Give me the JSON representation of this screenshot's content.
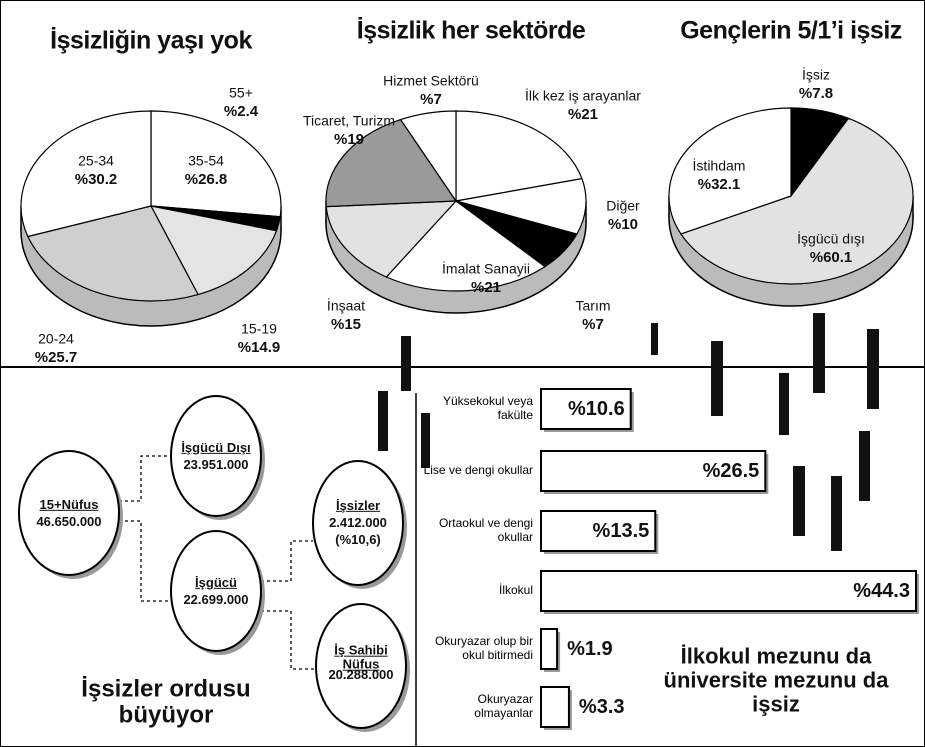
{
  "chart_data": [
    {
      "type": "pie",
      "title": "İşsizliğin yaşı yok",
      "categories": [
        "35-54",
        "55+",
        "15-19",
        "20-24",
        "25-34"
      ],
      "values": [
        26.8,
        2.4,
        14.9,
        25.7,
        30.2
      ],
      "value_labels": [
        "%26.8",
        "%2.4",
        "%14.9",
        "%25.7",
        "%30.2"
      ],
      "colors": [
        "#ffffff",
        "#000000",
        "#e4e4e4",
        "#cfcfcf",
        "#ffffff"
      ]
    },
    {
      "type": "pie",
      "title": "İşsizlik her sektörde",
      "categories": [
        "İlk kez iş arayanlar",
        "Diğer",
        "Tarım",
        "İmalat Sanayii",
        "İnşaat",
        "Ticaret, Turizm",
        "Hizmet Sektörü"
      ],
      "values": [
        21,
        10,
        7,
        21,
        15,
        19,
        7
      ],
      "value_labels": [
        "%21",
        "%10",
        "%7",
        "%21",
        "%15",
        "%19",
        "%7"
      ],
      "colors": [
        "#ffffff",
        "#ffffff",
        "#000000",
        "#ffffff",
        "#e2e2e2",
        "#9a9a9a",
        "#ffffff"
      ]
    },
    {
      "type": "pie",
      "title": "Gençlerin 5/1’i işsiz",
      "categories": [
        "İşsiz",
        "İşgücü dışı",
        "İstihdam"
      ],
      "values": [
        7.8,
        60.1,
        32.1
      ],
      "value_labels": [
        "%7.8",
        "%60.1",
        "%32.1"
      ],
      "colors": [
        "#000000",
        "#e2e2e2",
        "#ffffff"
      ]
    },
    {
      "type": "bar",
      "orientation": "horizontal",
      "title": "İlkokul mezunu da üniversite mezunu da işsiz",
      "categories": [
        "Yüksekokul veya fakülte",
        "Lise ve dengi okullar",
        "Ortaokul ve dengi okullar",
        "İlkokul",
        "Okuryazar olup bir okul bitirmedi",
        "Okuryazar olmayanlar"
      ],
      "values": [
        10.6,
        26.5,
        13.5,
        44.3,
        1.9,
        3.3
      ],
      "value_labels": [
        "%10.6",
        "%26.5",
        "%13.5",
        "%44.3",
        "%1.9",
        "%3.3"
      ],
      "color": "#ffffff"
    }
  ],
  "diagram": {
    "title": "İşsizler ordusu büyüyor",
    "nodes": [
      {
        "label": "15+Nüfus",
        "value": "46.650.000"
      },
      {
        "label": "İşgücü Dışı",
        "value": "23.951.000"
      },
      {
        "label": "İşgücü",
        "value": "22.699.000"
      },
      {
        "label": "İşsizler",
        "value": "2.412.000",
        "share": "(%10,6)"
      },
      {
        "label": "İş Sahibi Nüfus",
        "value": "20.288.000"
      }
    ]
  }
}
